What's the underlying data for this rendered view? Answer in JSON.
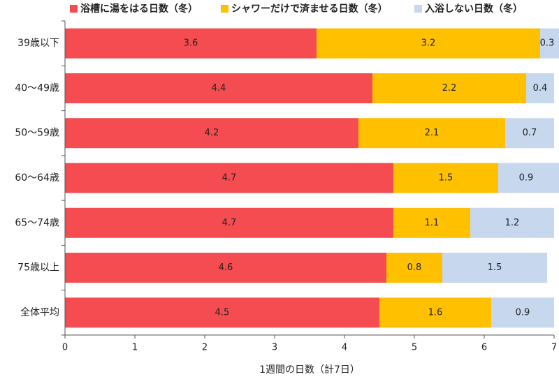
{
  "chart_data": {
    "type": "stacked-barh",
    "categories": [
      "39歳以下",
      "40〜49歳",
      "50〜59歳",
      "60〜64歳",
      "65〜74歳",
      "75歳以上",
      "全体平均"
    ],
    "series": [
      {
        "name": "浴槽に湯をはる日数（冬）",
        "color": "#f44c50",
        "values": [
          3.6,
          4.4,
          4.2,
          4.7,
          4.7,
          4.6,
          4.5
        ]
      },
      {
        "name": "シャワーだけで済ませる日数（冬）",
        "color": "#ffc000",
        "values": [
          3.2,
          2.2,
          2.1,
          1.5,
          1.1,
          0.8,
          1.6
        ]
      },
      {
        "name": "入浴しない日数（冬）",
        "color": "#c6d7ee",
        "values": [
          0.3,
          0.4,
          0.7,
          0.9,
          1.2,
          1.5,
          0.9
        ]
      }
    ],
    "x_label": "1週間の日数（計7日）",
    "xlim": [
      0,
      7
    ],
    "xticks": [
      0,
      1,
      2,
      3,
      4,
      5,
      6,
      7
    ]
  }
}
